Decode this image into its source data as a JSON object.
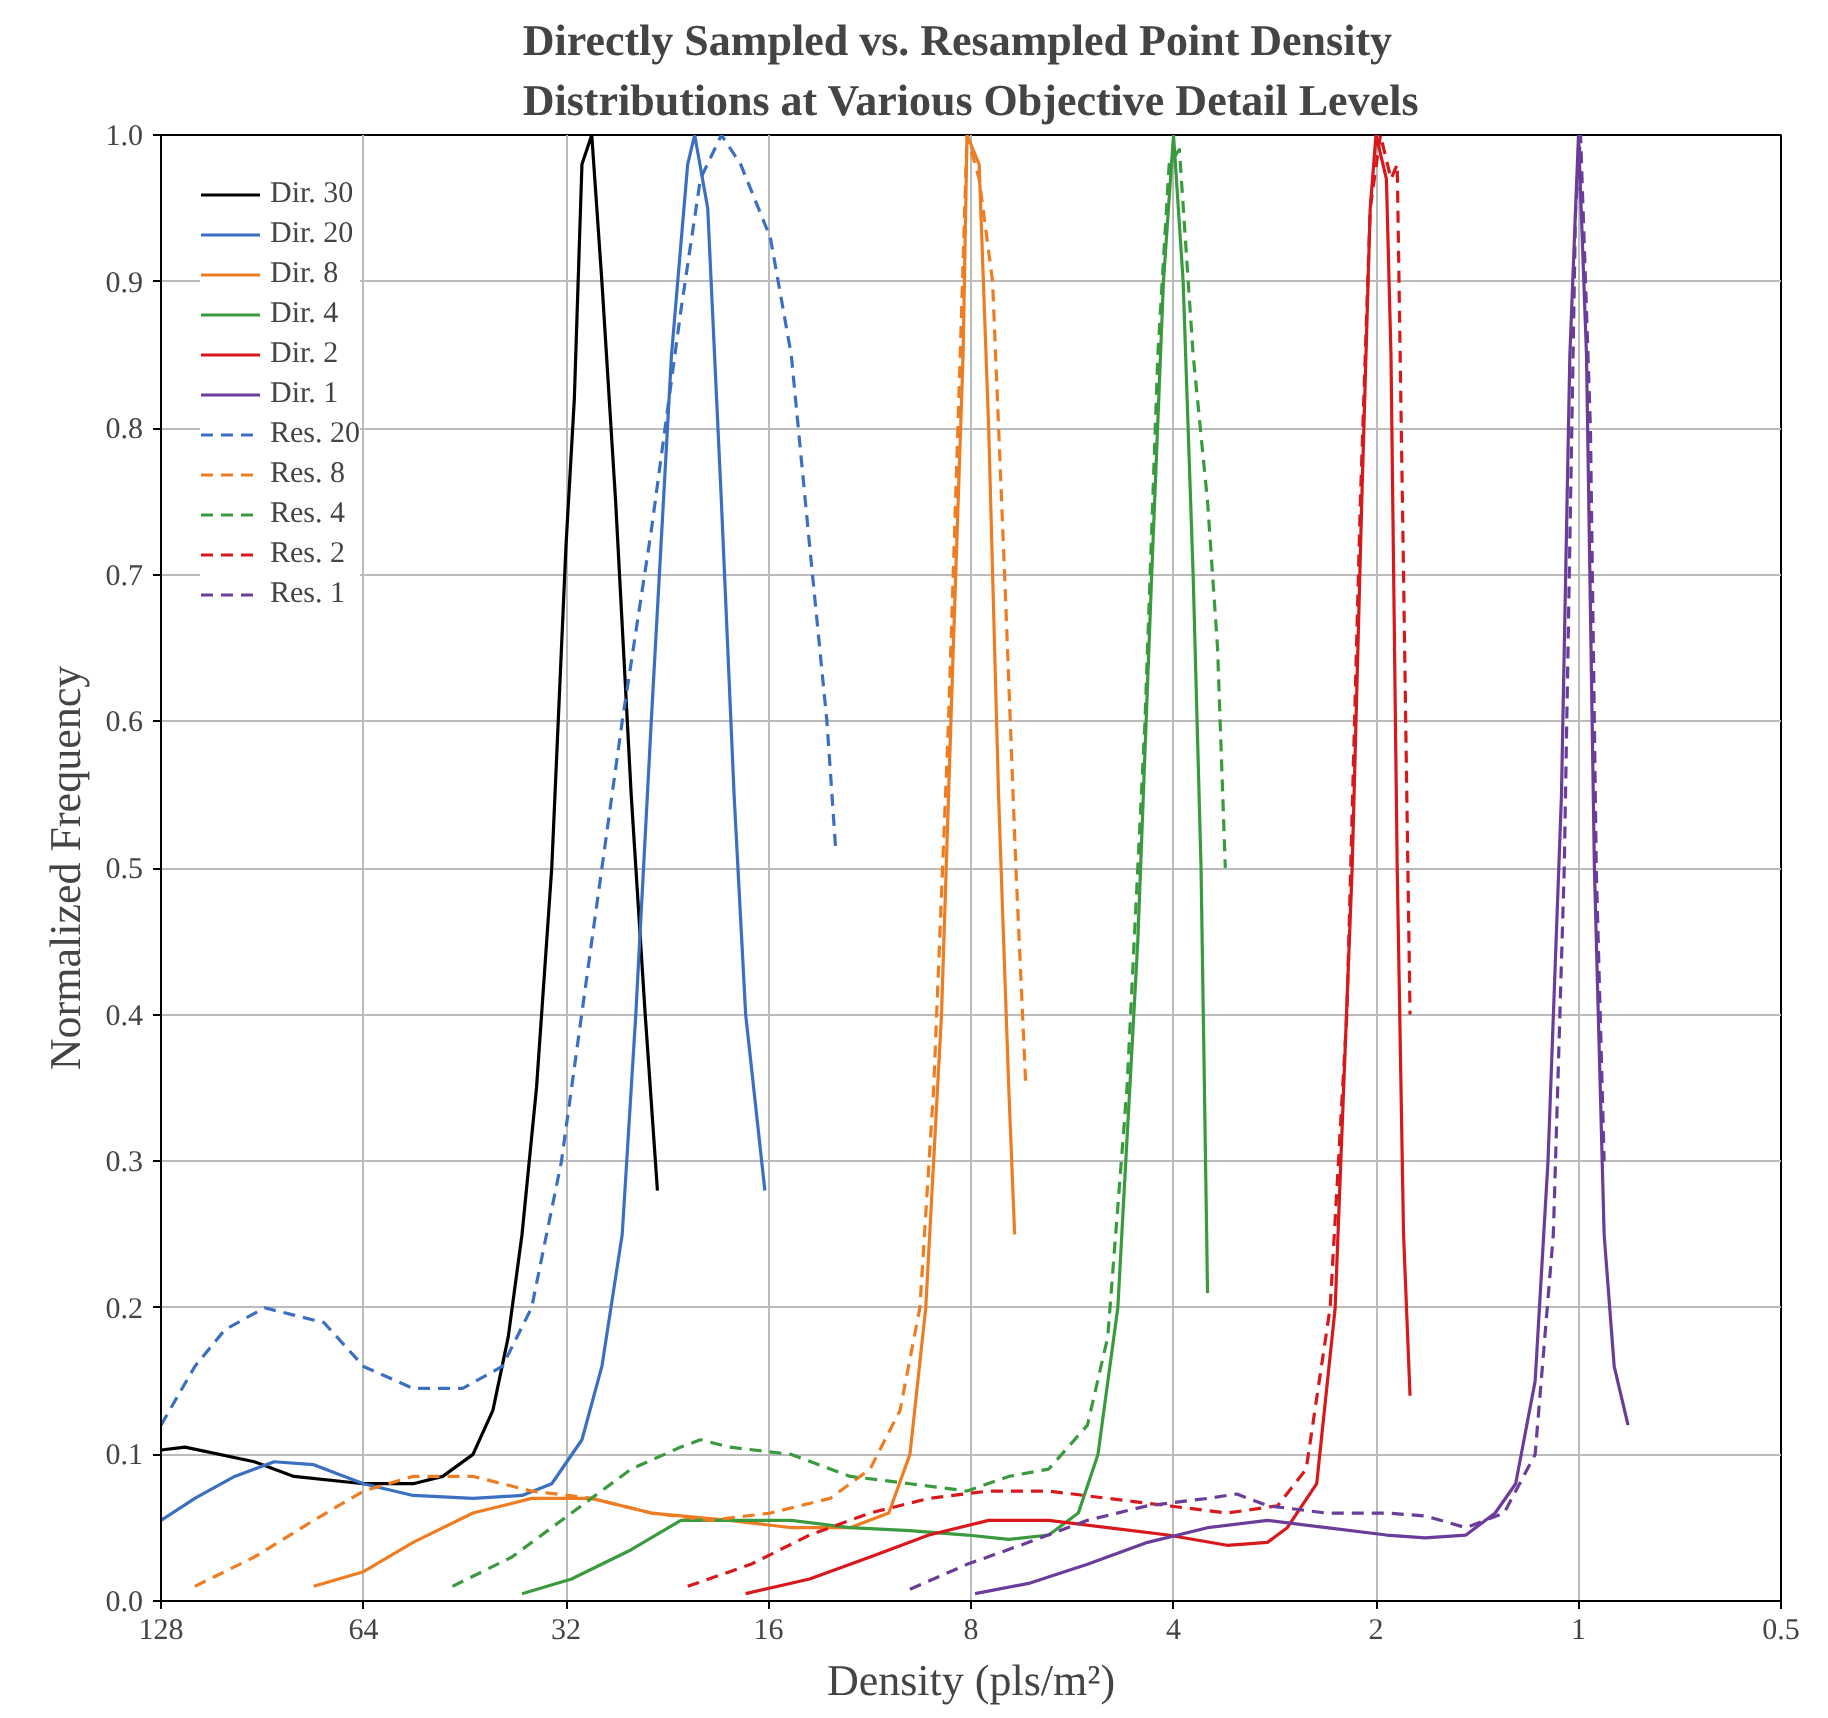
{
  "chart_data": {
    "type": "line",
    "title": "Directly Sampled vs. Resampled Point Density\nDistributions at Various Objective Detail Levels",
    "xlabel": "Density (pls/m²)",
    "ylabel": "Normalized Frequency",
    "log": "x",
    "xlim": [
      128,
      0.5
    ],
    "xticks": [
      128,
      64,
      32,
      16,
      8,
      4,
      2,
      1,
      0.5
    ],
    "ylim": [
      0,
      1
    ],
    "yticks": [
      {
        "value": 0,
        "label": "0.0"
      },
      0.1,
      0.2,
      0.3,
      0.4,
      0.5,
      0.6,
      0.7,
      0.8,
      0.9,
      {
        "value": 1,
        "label": "1.0"
      }
    ],
    "grid": true,
    "legend": "top left",
    "marker": "none",
    "series": [
      {
        "name": "Dir. 30",
        "color": "#000000",
        "line_style": "solid",
        "x": [
          128,
          117.9,
          93,
          81.2,
          64,
          54,
          48.8,
          44,
          41.1,
          39,
          37.2,
          35.4,
          33.6,
          32,
          31.1,
          30.3,
          29.3,
          28.3,
          27,
          25.6,
          24.4,
          23.4
        ],
        "values": [
          0.103,
          0.105,
          0.095,
          0.085,
          0.08,
          0.08,
          0.085,
          0.1,
          0.13,
          0.18,
          0.25,
          0.35,
          0.5,
          0.72,
          0.82,
          0.98,
          1.0,
          0.9,
          0.75,
          0.55,
          0.4,
          0.28
        ]
      },
      {
        "name": "Dir. 20",
        "color": "#3b6fc2",
        "line_style": "solid",
        "x": [
          128,
          114,
          99.5,
          86.9,
          75.9,
          64,
          54,
          44,
          37.2,
          33.6,
          30.3,
          28.3,
          26.4,
          25.2,
          23.9,
          22.3,
          21.1,
          20.6,
          19.7,
          18.8,
          18,
          17.3,
          16.2
        ],
        "values": [
          0.055,
          0.07,
          0.085,
          0.095,
          0.093,
          0.08,
          0.072,
          0.07,
          0.072,
          0.08,
          0.11,
          0.16,
          0.25,
          0.4,
          0.6,
          0.85,
          0.98,
          1.0,
          0.95,
          0.75,
          0.55,
          0.4,
          0.28
        ]
      },
      {
        "name": "Dir. 8",
        "color": "#ee7d22",
        "line_style": "solid",
        "x": [
          75.9,
          64,
          54,
          44,
          36,
          29.3,
          23.9,
          18.3,
          14.8,
          12.1,
          10.6,
          9.86,
          9.34,
          8.85,
          8.5,
          8.22,
          8.11,
          7.78,
          7.53,
          7.28,
          7.03,
          6.89
        ],
        "values": [
          0.01,
          0.02,
          0.04,
          0.06,
          0.07,
          0.07,
          0.06,
          0.055,
          0.05,
          0.05,
          0.06,
          0.1,
          0.2,
          0.4,
          0.65,
          0.85,
          1.0,
          0.98,
          0.8,
          0.55,
          0.35,
          0.25
        ]
      },
      {
        "name": "Dir. 4",
        "color": "#3a9a3e",
        "line_style": "solid",
        "x": [
          37.2,
          31.4,
          25.6,
          21.6,
          18.3,
          14.8,
          12.1,
          9.86,
          8.11,
          7.03,
          6.13,
          5.54,
          5.18,
          4.84,
          4.52,
          4.31,
          4.14,
          4,
          3.87,
          3.74,
          3.64,
          3.56
        ],
        "values": [
          0.005,
          0.015,
          0.035,
          0.055,
          0.055,
          0.055,
          0.05,
          0.048,
          0.045,
          0.042,
          0.045,
          0.06,
          0.1,
          0.2,
          0.45,
          0.7,
          0.9,
          1.0,
          0.9,
          0.7,
          0.5,
          0.21
        ]
      },
      {
        "name": "Dir. 2",
        "color": "#d7191c",
        "line_style": "solid",
        "x": [
          17.3,
          13.9,
          11.3,
          9.24,
          7.53,
          6.13,
          5.01,
          4.08,
          3.33,
          2.9,
          2.71,
          2.45,
          2.3,
          2.17,
          2.1,
          2.04,
          2,
          1.93,
          1.9,
          1.86,
          1.82,
          1.78
        ],
        "values": [
          0.005,
          0.015,
          0.03,
          0.045,
          0.055,
          0.055,
          0.05,
          0.045,
          0.038,
          0.04,
          0.05,
          0.08,
          0.2,
          0.5,
          0.75,
          0.95,
          1.0,
          0.97,
          0.85,
          0.5,
          0.25,
          0.14
        ]
      },
      {
        "name": "Dir. 1",
        "color": "#6a3d9a",
        "line_style": "solid",
        "x": [
          7.89,
          6.57,
          5.37,
          4.37,
          3.56,
          2.9,
          2.37,
          1.93,
          1.69,
          1.47,
          1.33,
          1.24,
          1.16,
          1.11,
          1.06,
          1.03,
          1,
          0.973,
          0.947,
          0.916,
          0.885,
          0.844
        ],
        "values": [
          0.005,
          0.012,
          0.025,
          0.04,
          0.05,
          0.055,
          0.05,
          0.045,
          0.043,
          0.045,
          0.06,
          0.08,
          0.15,
          0.3,
          0.55,
          0.85,
          1.0,
          0.85,
          0.5,
          0.25,
          0.16,
          0.12
        ]
      },
      {
        "name": "Res. 20",
        "color": "#3b6fc2",
        "line_style": "dashed",
        "x": [
          128,
          114,
          102.9,
          89.8,
          81.2,
          73.3,
          64,
          54,
          45.6,
          39.8,
          36,
          32.5,
          29.3,
          26.4,
          23.9,
          21.6,
          20.2,
          18.8,
          17.6,
          15.9,
          14.8,
          13.9,
          13.1,
          12.7
        ],
        "values": [
          0.12,
          0.16,
          0.185,
          0.2,
          0.195,
          0.19,
          0.16,
          0.145,
          0.145,
          0.16,
          0.2,
          0.3,
          0.45,
          0.6,
          0.73,
          0.88,
          0.97,
          1.0,
          0.98,
          0.93,
          0.85,
          0.72,
          0.6,
          0.51
        ]
      },
      {
        "name": "Res. 8",
        "color": "#ee7d22",
        "line_style": "dashed",
        "x": [
          114,
          93,
          75.9,
          64,
          54,
          44,
          36,
          29.3,
          23.9,
          19.5,
          15.9,
          12.96,
          11.3,
          10.2,
          9.53,
          9.09,
          8.64,
          8.3,
          8.11,
          7.78,
          7.43,
          7.13,
          6.86,
          6.63
        ],
        "values": [
          0.01,
          0.03,
          0.055,
          0.075,
          0.085,
          0.085,
          0.075,
          0.07,
          0.06,
          0.055,
          0.06,
          0.07,
          0.09,
          0.13,
          0.2,
          0.35,
          0.6,
          0.85,
          1.0,
          0.97,
          0.9,
          0.7,
          0.5,
          0.35
        ]
      },
      {
        "name": "Res. 4",
        "color": "#3a9a3e",
        "line_style": "dashed",
        "x": [
          47.2,
          38.5,
          31.4,
          25.6,
          21.6,
          20.2,
          18.3,
          14.8,
          12.1,
          9.86,
          8.11,
          7.03,
          6.13,
          5.37,
          5.01,
          4.69,
          4.41,
          4.22,
          4.06,
          3.92,
          3.74,
          3.56,
          3.44,
          3.35
        ],
        "values": [
          0.01,
          0.03,
          0.06,
          0.09,
          0.105,
          0.11,
          0.105,
          0.1,
          0.085,
          0.08,
          0.075,
          0.085,
          0.09,
          0.12,
          0.18,
          0.35,
          0.6,
          0.85,
          0.98,
          0.99,
          0.85,
          0.75,
          0.65,
          0.5
        ]
      },
      {
        "name": "Res. 2",
        "color": "#d7191c",
        "line_style": "dashed",
        "x": [
          21.1,
          17,
          13.9,
          11.3,
          9.24,
          7.53,
          6.13,
          5.01,
          4.08,
          3.33,
          2.8,
          2.54,
          2.34,
          2.21,
          2.11,
          2.04,
          1.97,
          1.9,
          1.86,
          1.82,
          1.78
        ],
        "values": [
          0.01,
          0.025,
          0.045,
          0.06,
          0.07,
          0.075,
          0.075,
          0.07,
          0.065,
          0.06,
          0.065,
          0.09,
          0.2,
          0.4,
          0.75,
          0.95,
          1.0,
          0.97,
          0.98,
          0.7,
          0.4
        ]
      },
      {
        "name": "Res. 1",
        "color": "#6a3d9a",
        "line_style": "dashed",
        "x": [
          9.86,
          8.11,
          6.57,
          5.37,
          4.37,
          3.56,
          3.22,
          2.9,
          2.37,
          1.93,
          1.69,
          1.47,
          1.29,
          1.16,
          1.09,
          1.05,
          1.01,
          0.993,
          0.96,
          0.941,
          0.916
        ],
        "values": [
          0.008,
          0.025,
          0.04,
          0.055,
          0.065,
          0.07,
          0.073,
          0.065,
          0.06,
          0.06,
          0.058,
          0.05,
          0.06,
          0.1,
          0.25,
          0.5,
          0.95,
          1.0,
          0.8,
          0.5,
          0.3
        ]
      }
    ]
  }
}
